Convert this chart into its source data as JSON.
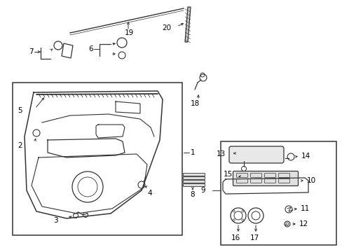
{
  "bg_color": "#ffffff",
  "lc": "#333333",
  "fig_width": 4.89,
  "fig_height": 3.6,
  "dpi": 100
}
